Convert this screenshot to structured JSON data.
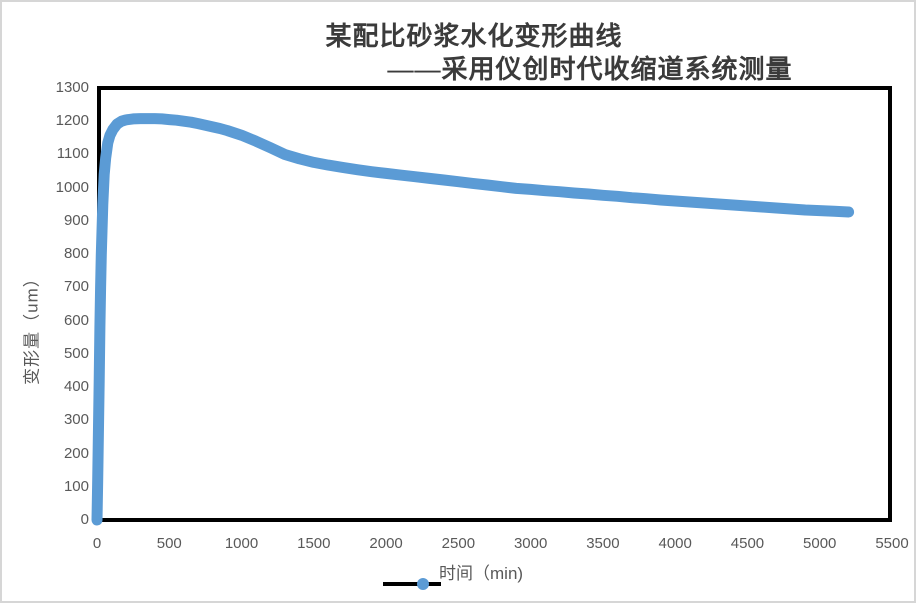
{
  "chart": {
    "title_line1": "某配比砂浆水化变形曲线",
    "title_line2": "——采用仪创时代收缩道系统测量",
    "y_axis_title": "变形量（um）",
    "legend_label": "时间（min)",
    "title_color": "#3b3b3b",
    "tick_color": "#595959",
    "plot_border_color": "#000000",
    "background_color": "#ffffff"
  },
  "chart_data": {
    "type": "line",
    "title": "某配比砂浆水化变形曲线 ——采用仪创时代收缩道系统测量",
    "xlabel": "时间（min)",
    "ylabel": "变形量（um）",
    "xlim": [
      0,
      5500
    ],
    "ylim": [
      0,
      1300
    ],
    "x_ticks": [
      0,
      500,
      1000,
      1500,
      2000,
      2500,
      3000,
      3500,
      4000,
      4500,
      5000,
      5500
    ],
    "y_ticks": [
      0,
      100,
      200,
      300,
      400,
      500,
      600,
      700,
      800,
      900,
      1000,
      1100,
      1200,
      1300
    ],
    "grid": false,
    "legend_position": "bottom",
    "line_color": "#5B9BD5",
    "legend_key_line_color": "#000000",
    "series": [
      {
        "name": "时间（min)",
        "points": [
          [
            0,
            0
          ],
          [
            5,
            120
          ],
          [
            10,
            260
          ],
          [
            15,
            420
          ],
          [
            20,
            580
          ],
          [
            25,
            700
          ],
          [
            30,
            800
          ],
          [
            40,
            950
          ],
          [
            50,
            1040
          ],
          [
            60,
            1090
          ],
          [
            75,
            1135
          ],
          [
            90,
            1158
          ],
          [
            110,
            1175
          ],
          [
            140,
            1192
          ],
          [
            170,
            1200
          ],
          [
            200,
            1204
          ],
          [
            250,
            1207
          ],
          [
            300,
            1208
          ],
          [
            350,
            1208
          ],
          [
            400,
            1208
          ],
          [
            450,
            1207
          ],
          [
            500,
            1205
          ],
          [
            550,
            1203
          ],
          [
            600,
            1200
          ],
          [
            650,
            1197
          ],
          [
            700,
            1193
          ],
          [
            750,
            1188
          ],
          [
            800,
            1183
          ],
          [
            850,
            1178
          ],
          [
            900,
            1172
          ],
          [
            950,
            1165
          ],
          [
            1000,
            1158
          ],
          [
            1100,
            1140
          ],
          [
            1200,
            1120
          ],
          [
            1300,
            1100
          ],
          [
            1400,
            1087
          ],
          [
            1500,
            1076
          ],
          [
            1600,
            1068
          ],
          [
            1700,
            1061
          ],
          [
            1800,
            1054
          ],
          [
            1900,
            1048
          ],
          [
            2000,
            1043
          ],
          [
            2100,
            1038
          ],
          [
            2200,
            1033
          ],
          [
            2300,
            1028
          ],
          [
            2400,
            1023
          ],
          [
            2500,
            1018
          ],
          [
            2600,
            1013
          ],
          [
            2700,
            1008
          ],
          [
            2800,
            1003
          ],
          [
            2900,
            998
          ],
          [
            3000,
            995
          ],
          [
            3100,
            991
          ],
          [
            3200,
            988
          ],
          [
            3300,
            984
          ],
          [
            3400,
            981
          ],
          [
            3500,
            977
          ],
          [
            3600,
            974
          ],
          [
            3700,
            970
          ],
          [
            3800,
            967
          ],
          [
            3900,
            963
          ],
          [
            4000,
            960
          ],
          [
            4100,
            957
          ],
          [
            4200,
            954
          ],
          [
            4300,
            951
          ],
          [
            4400,
            948
          ],
          [
            4500,
            945
          ],
          [
            4600,
            942
          ],
          [
            4700,
            939
          ],
          [
            4800,
            936
          ],
          [
            4900,
            933
          ],
          [
            5000,
            931
          ],
          [
            5100,
            929
          ],
          [
            5200,
            927
          ]
        ]
      }
    ]
  }
}
